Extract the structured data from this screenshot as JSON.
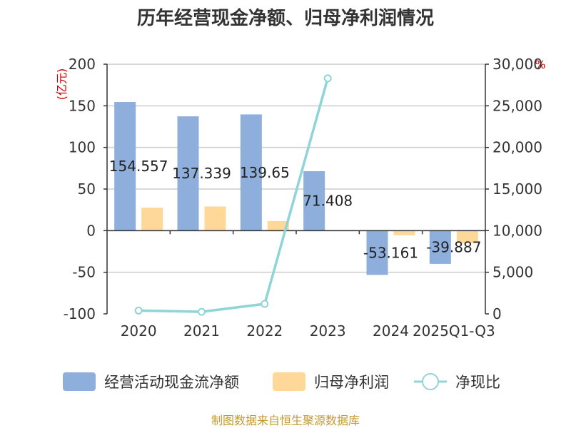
{
  "chart_data": {
    "type": "bar",
    "title": "历年经营现金净额、归母净利润情况",
    "categories": [
      "2020",
      "2021",
      "2022",
      "2023",
      "2024",
      "2025Q1-Q3"
    ],
    "y_left": {
      "unit": "(亿元)",
      "range": [
        -100,
        200
      ],
      "ticks": [
        200,
        150,
        100,
        50,
        0,
        -50,
        -100
      ]
    },
    "y_right": {
      "unit": "%",
      "range": [
        0,
        30000
      ],
      "ticks": [
        "30,000",
        "25,000",
        "20,000",
        "15,000",
        "10,000",
        "5,000",
        "0"
      ]
    },
    "series": [
      {
        "name": "经营活动现金流净额",
        "kind": "bar",
        "axis": "left",
        "color": "#8eaedc",
        "values": [
          154.557,
          137.339,
          139.65,
          71.408,
          -53.161,
          -39.887
        ],
        "labels": [
          "154.557",
          "137.339",
          "139.65",
          "71.408",
          "-53.161",
          "-39.887"
        ]
      },
      {
        "name": "归母净利润",
        "kind": "bar",
        "axis": "left",
        "color": "#fdd898",
        "values": [
          27.5,
          29,
          11.5,
          0,
          -5.5,
          -15
        ]
      },
      {
        "name": "净现比",
        "kind": "line",
        "axis": "right",
        "color": "#8fd4d7",
        "values": [
          400,
          250,
          1200,
          28300,
          null,
          null
        ]
      }
    ],
    "grid": true,
    "legend_position": "bottom"
  },
  "source": "制图数据来自恒生聚源数据库"
}
